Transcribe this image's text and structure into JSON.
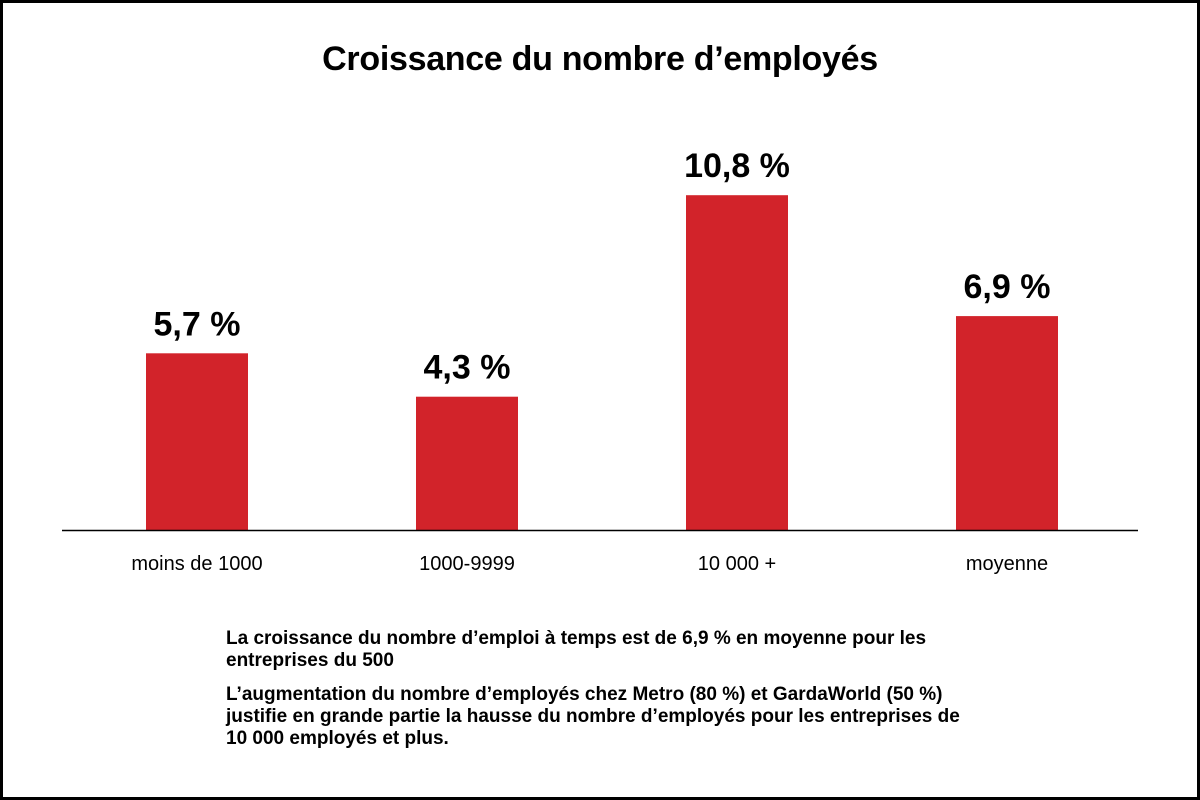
{
  "chart_data": {
    "type": "bar",
    "title": "Croissance du nombre d’employés",
    "categories": [
      "moins de 1000",
      "1000-9999",
      "10 000 +",
      "moyenne"
    ],
    "values": [
      5.7,
      4.3,
      10.8,
      6.9
    ],
    "value_labels": [
      "5,7 %",
      "4,3 %",
      "10,8 %",
      "6,9 %"
    ],
    "xlabel": "",
    "ylabel": "",
    "ylim": [
      0,
      12
    ],
    "grid": false,
    "bar_color": "#d2232a"
  },
  "notes": {
    "line1": "La croissance du nombre d’emploi à temps est de 6,9 % en moyenne pour les entreprises du 500",
    "line2": "L’augmentation du nombre d’employés chez Metro (80 %) et GardaWorld (50 %) justifie en grande partie la hausse du nombre d’employés pour les entreprises de 10 000 employés et plus."
  }
}
